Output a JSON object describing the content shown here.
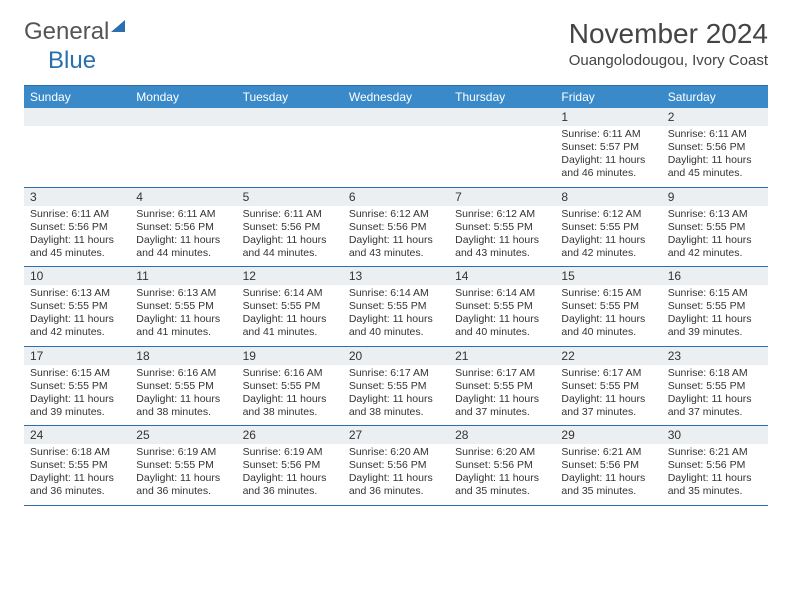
{
  "logo": {
    "text_general": "General",
    "text_blue": "Blue"
  },
  "title": "November 2024",
  "location": "Ouangolodougou, Ivory Coast",
  "day_headers": [
    "Sunday",
    "Monday",
    "Tuesday",
    "Wednesday",
    "Thursday",
    "Friday",
    "Saturday"
  ],
  "colors": {
    "header_bg": "#3a8ac9",
    "header_text": "#ffffff",
    "rule": "#2a6fb0",
    "daynum_bg": "#eceff1",
    "text": "#333333"
  },
  "weeks": [
    [
      null,
      null,
      null,
      null,
      null,
      {
        "n": "1",
        "sunrise": "Sunrise: 6:11 AM",
        "sunset": "Sunset: 5:57 PM",
        "daylight": "Daylight: 11 hours and 46 minutes."
      },
      {
        "n": "2",
        "sunrise": "Sunrise: 6:11 AM",
        "sunset": "Sunset: 5:56 PM",
        "daylight": "Daylight: 11 hours and 45 minutes."
      }
    ],
    [
      {
        "n": "3",
        "sunrise": "Sunrise: 6:11 AM",
        "sunset": "Sunset: 5:56 PM",
        "daylight": "Daylight: 11 hours and 45 minutes."
      },
      {
        "n": "4",
        "sunrise": "Sunrise: 6:11 AM",
        "sunset": "Sunset: 5:56 PM",
        "daylight": "Daylight: 11 hours and 44 minutes."
      },
      {
        "n": "5",
        "sunrise": "Sunrise: 6:11 AM",
        "sunset": "Sunset: 5:56 PM",
        "daylight": "Daylight: 11 hours and 44 minutes."
      },
      {
        "n": "6",
        "sunrise": "Sunrise: 6:12 AM",
        "sunset": "Sunset: 5:56 PM",
        "daylight": "Daylight: 11 hours and 43 minutes."
      },
      {
        "n": "7",
        "sunrise": "Sunrise: 6:12 AM",
        "sunset": "Sunset: 5:55 PM",
        "daylight": "Daylight: 11 hours and 43 minutes."
      },
      {
        "n": "8",
        "sunrise": "Sunrise: 6:12 AM",
        "sunset": "Sunset: 5:55 PM",
        "daylight": "Daylight: 11 hours and 42 minutes."
      },
      {
        "n": "9",
        "sunrise": "Sunrise: 6:13 AM",
        "sunset": "Sunset: 5:55 PM",
        "daylight": "Daylight: 11 hours and 42 minutes."
      }
    ],
    [
      {
        "n": "10",
        "sunrise": "Sunrise: 6:13 AM",
        "sunset": "Sunset: 5:55 PM",
        "daylight": "Daylight: 11 hours and 42 minutes."
      },
      {
        "n": "11",
        "sunrise": "Sunrise: 6:13 AM",
        "sunset": "Sunset: 5:55 PM",
        "daylight": "Daylight: 11 hours and 41 minutes."
      },
      {
        "n": "12",
        "sunrise": "Sunrise: 6:14 AM",
        "sunset": "Sunset: 5:55 PM",
        "daylight": "Daylight: 11 hours and 41 minutes."
      },
      {
        "n": "13",
        "sunrise": "Sunrise: 6:14 AM",
        "sunset": "Sunset: 5:55 PM",
        "daylight": "Daylight: 11 hours and 40 minutes."
      },
      {
        "n": "14",
        "sunrise": "Sunrise: 6:14 AM",
        "sunset": "Sunset: 5:55 PM",
        "daylight": "Daylight: 11 hours and 40 minutes."
      },
      {
        "n": "15",
        "sunrise": "Sunrise: 6:15 AM",
        "sunset": "Sunset: 5:55 PM",
        "daylight": "Daylight: 11 hours and 40 minutes."
      },
      {
        "n": "16",
        "sunrise": "Sunrise: 6:15 AM",
        "sunset": "Sunset: 5:55 PM",
        "daylight": "Daylight: 11 hours and 39 minutes."
      }
    ],
    [
      {
        "n": "17",
        "sunrise": "Sunrise: 6:15 AM",
        "sunset": "Sunset: 5:55 PM",
        "daylight": "Daylight: 11 hours and 39 minutes."
      },
      {
        "n": "18",
        "sunrise": "Sunrise: 6:16 AM",
        "sunset": "Sunset: 5:55 PM",
        "daylight": "Daylight: 11 hours and 38 minutes."
      },
      {
        "n": "19",
        "sunrise": "Sunrise: 6:16 AM",
        "sunset": "Sunset: 5:55 PM",
        "daylight": "Daylight: 11 hours and 38 minutes."
      },
      {
        "n": "20",
        "sunrise": "Sunrise: 6:17 AM",
        "sunset": "Sunset: 5:55 PM",
        "daylight": "Daylight: 11 hours and 38 minutes."
      },
      {
        "n": "21",
        "sunrise": "Sunrise: 6:17 AM",
        "sunset": "Sunset: 5:55 PM",
        "daylight": "Daylight: 11 hours and 37 minutes."
      },
      {
        "n": "22",
        "sunrise": "Sunrise: 6:17 AM",
        "sunset": "Sunset: 5:55 PM",
        "daylight": "Daylight: 11 hours and 37 minutes."
      },
      {
        "n": "23",
        "sunrise": "Sunrise: 6:18 AM",
        "sunset": "Sunset: 5:55 PM",
        "daylight": "Daylight: 11 hours and 37 minutes."
      }
    ],
    [
      {
        "n": "24",
        "sunrise": "Sunrise: 6:18 AM",
        "sunset": "Sunset: 5:55 PM",
        "daylight": "Daylight: 11 hours and 36 minutes."
      },
      {
        "n": "25",
        "sunrise": "Sunrise: 6:19 AM",
        "sunset": "Sunset: 5:55 PM",
        "daylight": "Daylight: 11 hours and 36 minutes."
      },
      {
        "n": "26",
        "sunrise": "Sunrise: 6:19 AM",
        "sunset": "Sunset: 5:56 PM",
        "daylight": "Daylight: 11 hours and 36 minutes."
      },
      {
        "n": "27",
        "sunrise": "Sunrise: 6:20 AM",
        "sunset": "Sunset: 5:56 PM",
        "daylight": "Daylight: 11 hours and 36 minutes."
      },
      {
        "n": "28",
        "sunrise": "Sunrise: 6:20 AM",
        "sunset": "Sunset: 5:56 PM",
        "daylight": "Daylight: 11 hours and 35 minutes."
      },
      {
        "n": "29",
        "sunrise": "Sunrise: 6:21 AM",
        "sunset": "Sunset: 5:56 PM",
        "daylight": "Daylight: 11 hours and 35 minutes."
      },
      {
        "n": "30",
        "sunrise": "Sunrise: 6:21 AM",
        "sunset": "Sunset: 5:56 PM",
        "daylight": "Daylight: 11 hours and 35 minutes."
      }
    ]
  ]
}
